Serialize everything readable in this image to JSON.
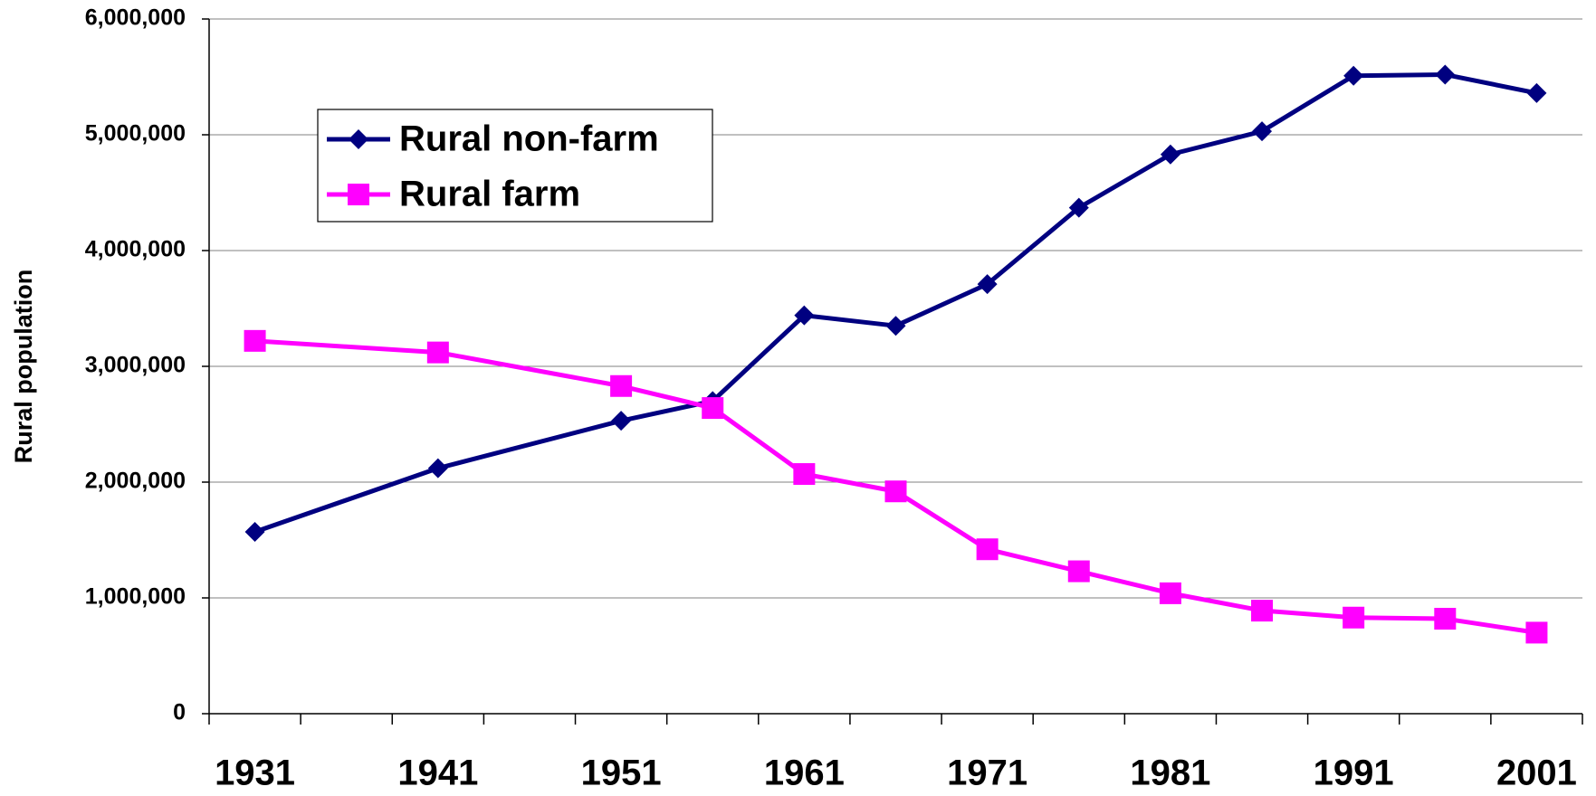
{
  "chart_data": {
    "type": "line",
    "y_label": "Rural population",
    "x": [
      1931,
      1941,
      1951,
      1956,
      1961,
      1966,
      1971,
      1976,
      1981,
      1986,
      1991,
      1996,
      2001
    ],
    "series": [
      {
        "name": "Rural non-farm",
        "color": "#000080",
        "marker": "diamond",
        "values": [
          1570000,
          2120000,
          2530000,
          2700000,
          3440000,
          3350000,
          3710000,
          4370000,
          4830000,
          5030000,
          5510000,
          5520000,
          5360000
        ]
      },
      {
        "name": "Rural farm",
        "color": "#ff00ff",
        "marker": "square",
        "values": [
          3220000,
          3120000,
          2830000,
          2640000,
          2070000,
          1920000,
          1420000,
          1230000,
          1040000,
          890000,
          830000,
          820000,
          700000
        ]
      }
    ],
    "xlim": [
      1928.5,
      2003.5
    ],
    "xticks": [
      1931,
      1941,
      1951,
      1961,
      1971,
      1981,
      1991,
      2001
    ],
    "ylim": [
      0,
      6000000
    ],
    "yticks": [
      0,
      {
        "value": 1000000,
        "label": "1,000,000"
      },
      {
        "value": 2000000,
        "label": "2,000,000"
      },
      {
        "value": 3000000,
        "label": "3,000,000"
      },
      {
        "value": 4000000,
        "label": "4,000,000"
      },
      {
        "value": 5000000,
        "label": "5,000,000"
      },
      {
        "value": 6000000,
        "label": "6,000,000"
      }
    ],
    "grid": true,
    "legend": "upper-left"
  }
}
